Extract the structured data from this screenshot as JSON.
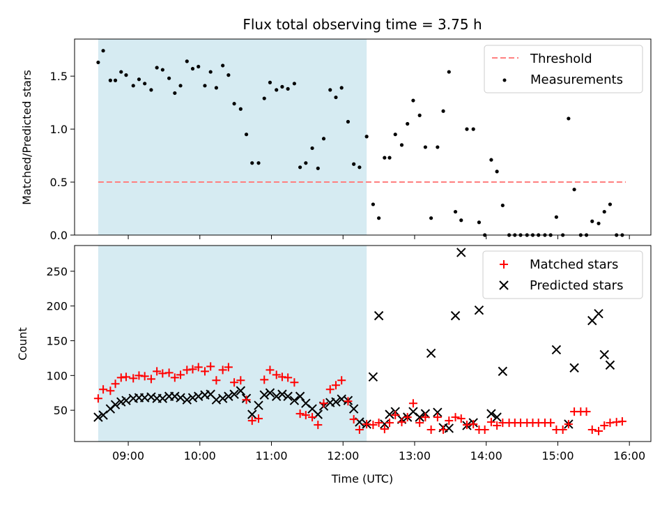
{
  "title": "Flux total observing time = 3.75 h",
  "xlabel": "Time (UTC)",
  "x_ticks": [
    "09:00",
    "10:00",
    "11:00",
    "12:00",
    "13:00",
    "14:00",
    "15:00",
    "16:00"
  ],
  "colors": {
    "shade": "#add8e6",
    "threshold": "#ff7f7f",
    "measurement": "#000000",
    "matched": "#ff0000",
    "predicted": "#000000"
  },
  "chart_data": [
    {
      "type": "scatter",
      "ylabel": "Matched/Predicted stars",
      "xlim_hours": [
        8.25,
        16.3
      ],
      "ylim": [
        0,
        1.85
      ],
      "y_ticks": [
        "0.0",
        "0.5",
        "1.0",
        "1.5"
      ],
      "y_tick_values": [
        0,
        0.5,
        1.0,
        1.5
      ],
      "shaded_interval_hours": [
        8.58,
        12.33
      ],
      "threshold": {
        "label": "Threshold",
        "value": 0.5,
        "x_range_hours": [
          8.58,
          15.95
        ]
      },
      "legend": {
        "location": "top-right",
        "entries": [
          "Threshold",
          "Measurements"
        ]
      },
      "series": [
        {
          "name": "Measurements",
          "x_hours": [
            8.58,
            8.65,
            8.75,
            8.82,
            8.9,
            8.97,
            9.07,
            9.15,
            9.23,
            9.32,
            9.4,
            9.48,
            9.57,
            9.65,
            9.73,
            9.82,
            9.9,
            9.98,
            10.07,
            10.15,
            10.23,
            10.32,
            10.4,
            10.48,
            10.57,
            10.65,
            10.73,
            10.82,
            10.9,
            10.98,
            11.07,
            11.15,
            11.23,
            11.32,
            11.4,
            11.48,
            11.57,
            11.65,
            11.73,
            11.82,
            11.9,
            11.98,
            12.07,
            12.15,
            12.23,
            12.33,
            12.42,
            12.5,
            12.58,
            12.65,
            12.73,
            12.82,
            12.9,
            12.98,
            13.07,
            13.15,
            13.23,
            13.32,
            13.4,
            13.48,
            13.57,
            13.65,
            13.73,
            13.82,
            13.9,
            13.98,
            14.07,
            14.15,
            14.23,
            14.32,
            14.4,
            14.48,
            14.57,
            14.65,
            14.73,
            14.82,
            14.9,
            14.98,
            15.07,
            15.15,
            15.23,
            15.32,
            15.4,
            15.48,
            15.57,
            15.65,
            15.73,
            15.82,
            15.9
          ],
          "y": [
            1.63,
            1.74,
            1.46,
            1.46,
            1.54,
            1.51,
            1.41,
            1.47,
            1.43,
            1.37,
            1.58,
            1.56,
            1.48,
            1.34,
            1.41,
            1.64,
            1.57,
            1.59,
            1.41,
            1.54,
            1.39,
            1.6,
            1.51,
            1.24,
            1.19,
            0.95,
            0.68,
            0.68,
            1.29,
            1.44,
            1.37,
            1.4,
            1.38,
            1.43,
            0.64,
            0.68,
            0.82,
            0.63,
            0.91,
            1.37,
            1.3,
            1.39,
            1.07,
            0.67,
            0.64,
            0.93,
            0.29,
            0.16,
            0.73,
            0.73,
            0.95,
            0.85,
            1.05,
            1.27,
            1.13,
            0.83,
            0.16,
            0.83,
            1.17,
            1.54,
            0.22,
            0.14,
            1.0,
            1.0,
            0.12,
            0.0,
            0.71,
            0.6,
            0.28,
            0.0,
            0.0,
            0.0,
            0.0,
            0.0,
            0.0,
            0.0,
            0.0,
            0.17,
            0.0,
            1.1,
            0.43,
            0.0,
            0.0,
            0.13,
            0.11,
            0.22,
            0.29,
            0.0,
            0.0
          ]
        }
      ]
    },
    {
      "type": "scatter",
      "ylabel": "Count",
      "xlim_hours": [
        8.25,
        16.3
      ],
      "ylim": [
        5,
        287
      ],
      "y_ticks": [
        "50",
        "100",
        "150",
        "200",
        "250"
      ],
      "y_tick_values": [
        50,
        100,
        150,
        200,
        250
      ],
      "shaded_interval_hours": [
        8.58,
        12.33
      ],
      "legend": {
        "location": "top-right",
        "entries": [
          "Matched stars",
          "Predicted stars"
        ]
      },
      "series": [
        {
          "name": "Matched stars",
          "marker": "plus",
          "x_hours": [
            8.58,
            8.65,
            8.75,
            8.82,
            8.9,
            8.97,
            9.07,
            9.15,
            9.23,
            9.32,
            9.4,
            9.48,
            9.57,
            9.65,
            9.73,
            9.82,
            9.9,
            9.98,
            10.07,
            10.15,
            10.23,
            10.32,
            10.4,
            10.48,
            10.57,
            10.65,
            10.73,
            10.82,
            10.9,
            10.98,
            11.07,
            11.15,
            11.23,
            11.32,
            11.4,
            11.48,
            11.57,
            11.65,
            11.73,
            11.82,
            11.9,
            11.98,
            12.07,
            12.15,
            12.23,
            12.33,
            12.42,
            12.5,
            12.58,
            12.65,
            12.73,
            12.82,
            12.9,
            12.98,
            13.07,
            13.15,
            13.23,
            13.32,
            13.4,
            13.48,
            13.57,
            13.65,
            13.73,
            13.82,
            13.9,
            13.98,
            14.07,
            14.15,
            14.23,
            14.32,
            14.4,
            14.48,
            14.57,
            14.65,
            14.73,
            14.82,
            14.9,
            14.98,
            15.07,
            15.15,
            15.23,
            15.32,
            15.4,
            15.48,
            15.57,
            15.65,
            15.73,
            15.82,
            15.9
          ],
          "y": [
            67,
            80,
            78,
            88,
            97,
            98,
            96,
            100,
            99,
            95,
            106,
            103,
            104,
            97,
            101,
            108,
            109,
            112,
            106,
            113,
            93,
            108,
            112,
            90,
            93,
            65,
            35,
            38,
            94,
            108,
            101,
            98,
            97,
            90,
            45,
            43,
            40,
            29,
            60,
            80,
            86,
            93,
            63,
            37,
            22,
            30,
            29,
            32,
            23,
            32,
            43,
            33,
            40,
            60,
            32,
            40,
            22,
            40,
            22,
            35,
            40,
            38,
            29,
            30,
            22,
            22,
            33,
            28,
            32,
            32,
            32,
            32,
            32,
            32,
            32,
            32,
            32,
            22,
            22,
            30,
            48,
            48,
            48,
            22,
            20,
            28,
            32,
            33,
            34
          ]
        },
        {
          "name": "Predicted stars",
          "marker": "x",
          "x_hours": [
            8.58,
            8.65,
            8.75,
            8.82,
            8.9,
            8.97,
            9.07,
            9.15,
            9.23,
            9.32,
            9.4,
            9.48,
            9.57,
            9.65,
            9.73,
            9.82,
            9.9,
            9.98,
            10.07,
            10.15,
            10.23,
            10.32,
            10.4,
            10.48,
            10.57,
            10.65,
            10.73,
            10.82,
            10.9,
            10.98,
            11.07,
            11.15,
            11.23,
            11.32,
            11.4,
            11.48,
            11.57,
            11.65,
            11.73,
            11.82,
            11.9,
            11.98,
            12.07,
            12.15,
            12.23,
            12.33,
            12.42,
            12.5,
            12.58,
            12.65,
            12.73,
            12.82,
            12.9,
            12.98,
            13.07,
            13.15,
            13.23,
            13.32,
            13.4,
            13.48,
            13.57,
            13.65,
            13.73,
            13.82,
            13.9,
            14.07,
            14.15,
            14.23,
            14.98,
            15.15,
            15.23,
            15.48,
            15.57,
            15.65,
            15.73
          ],
          "y": [
            40,
            43,
            52,
            58,
            62,
            64,
            67,
            68,
            68,
            69,
            67,
            67,
            70,
            70,
            68,
            65,
            68,
            70,
            72,
            73,
            65,
            67,
            70,
            73,
            78,
            67,
            44,
            57,
            72,
            75,
            70,
            73,
            70,
            64,
            70,
            60,
            52,
            44,
            56,
            61,
            62,
            66,
            64,
            52,
            33,
            30,
            98,
            186,
            30,
            44,
            48,
            37,
            40,
            48,
            40,
            45,
            132,
            47,
            25,
            24,
            186,
            277,
            28,
            32,
            194,
            45,
            40,
            106,
            137,
            30,
            111,
            179,
            189,
            130,
            115
          ]
        }
      ]
    }
  ]
}
